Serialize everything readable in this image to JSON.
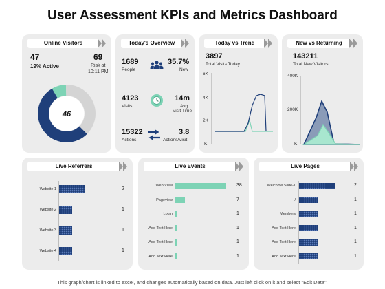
{
  "title": "User Assessment KPIs and Metrics Dashboard",
  "footer": "This graph/chart is linked to excel, and changes automatically based on data. Just left click on it and select \"Edit Data\".",
  "colors": {
    "navy": "#1f3f7a",
    "teal": "#7dd3b5",
    "card": "#ececec",
    "chevron": "#9a9a9a"
  },
  "online_visitors": {
    "heading": "Online Visitors",
    "count": "47",
    "active": "19% Active",
    "risk_value": "69",
    "risk_label": "Risk at",
    "risk_time": "10:11 PM",
    "donut_center": "46",
    "donut_segments": [
      {
        "name": "navy",
        "fraction": 0.54
      },
      {
        "name": "teal",
        "fraction": 0.08
      },
      {
        "name": "grey",
        "fraction": 0.38
      }
    ]
  },
  "todays_overview": {
    "heading": "Today's Overview",
    "people_value": "1689",
    "people_label": "People",
    "new_value": "35.7%",
    "new_label": "New",
    "visits_value": "4123",
    "visits_label": "Visits",
    "visit_time_value": "14m",
    "visit_time_label_1": "Avg.",
    "visit_time_label_2": "Visit Time",
    "actions_value": "15322",
    "actions_label": "Actions",
    "per_visit_value": "3.8",
    "per_visit_label": "Actions/Visit",
    "icons": [
      "people-icon",
      "clock-icon",
      "swap-arrows-icon"
    ]
  },
  "today_vs_trend": {
    "heading": "Today vs Trend",
    "value": "3897",
    "label": "Total Visits Today",
    "y_ticks": [
      "6K",
      "4K",
      "2K",
      "K"
    ]
  },
  "new_vs_returning": {
    "heading": "New vs Returning",
    "value": "143211",
    "label": "Total New Visitors",
    "y_ticks": [
      "400K",
      "200K",
      "K"
    ]
  },
  "live_referrers": {
    "heading": "Live Referrers",
    "rows": [
      {
        "label": "Website 1",
        "value": "2"
      },
      {
        "label": "Website 2",
        "value": "1"
      },
      {
        "label": "Website 3",
        "value": "1"
      },
      {
        "label": "Website 4",
        "value": "1"
      }
    ]
  },
  "live_events": {
    "heading": "Live Events",
    "rows": [
      {
        "label": "Web View",
        "value": "38"
      },
      {
        "label": "Pageview",
        "value": "7"
      },
      {
        "label": "Login",
        "value": "1"
      },
      {
        "label": "Add Text Here",
        "value": "1"
      },
      {
        "label": "Add Text Here",
        "value": "1"
      },
      {
        "label": "Add Text Here",
        "value": "1"
      }
    ]
  },
  "live_pages": {
    "heading": "Live Pages",
    "rows": [
      {
        "label": "Welcome Slide-1",
        "value": "2"
      },
      {
        "label": "/",
        "value": "1"
      },
      {
        "label": "Members",
        "value": "1"
      },
      {
        "label": "Add Text Here",
        "value": "1"
      },
      {
        "label": "Add Text Here",
        "value": "1"
      },
      {
        "label": "Add Text Here",
        "value": "1"
      }
    ]
  }
}
